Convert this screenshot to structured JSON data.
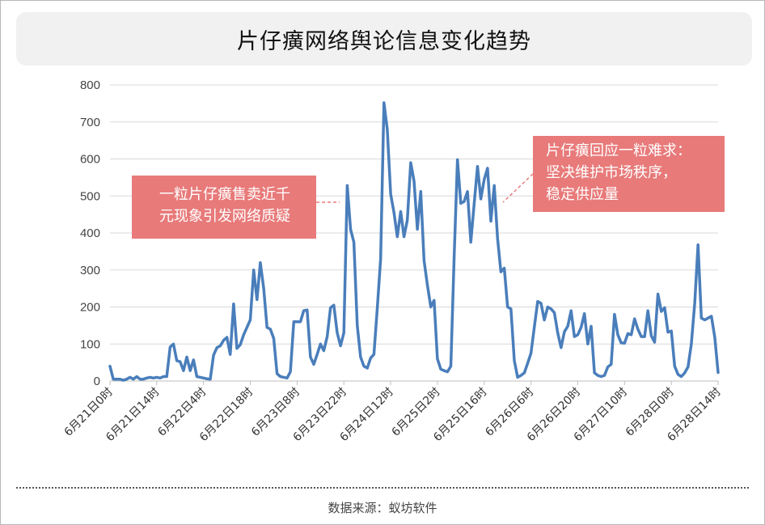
{
  "page": {
    "title": "片仔癀网络舆论信息变化趋势",
    "source": "数据来源：蚁坊软件"
  },
  "callouts": {
    "left": {
      "line1": "一粒片仔癀售卖近千",
      "line2": "元现象引发网络质疑"
    },
    "right": {
      "line1": "片仔癀回应一粒难求：",
      "line2": "坚决维护市场秩序，",
      "line3": "稳定供应量"
    }
  },
  "colors": {
    "line": "#4a7ebb",
    "callout": "#e87a7a",
    "grid": "#d9d9d9"
  },
  "chart_data": {
    "type": "line",
    "title": "片仔癀网络舆论信息变化趋势",
    "ylim": [
      0,
      800
    ],
    "yticks": [
      0,
      100,
      200,
      300,
      400,
      500,
      600,
      700,
      800
    ],
    "grid": true,
    "x_tick_labels": [
      "6月21日0时",
      "6月21日14时",
      "6月22日4时",
      "6月22日18时",
      "6月23日8时",
      "6月23日22时",
      "6月24日12时",
      "6月25日2时",
      "6月25日16时",
      "6月26日6时",
      "6月26日20时",
      "6月27日10时",
      "6月28日0时",
      "6月28日14时"
    ],
    "x_tick_index_step": 14,
    "series": [
      {
        "values": [
          40,
          5,
          5,
          5,
          2,
          5,
          10,
          5,
          12,
          5,
          5,
          8,
          10,
          8,
          10,
          8,
          12,
          12,
          92,
          100,
          55,
          52,
          28,
          65,
          28,
          57,
          12,
          10,
          8,
          6,
          5,
          70,
          90,
          95,
          110,
          118,
          72,
          208,
          88,
          98,
          125,
          145,
          165,
          300,
          220,
          320,
          250,
          145,
          140,
          115,
          20,
          12,
          10,
          8,
          25,
          160,
          160,
          160,
          190,
          192,
          65,
          45,
          72,
          100,
          82,
          120,
          198,
          205,
          130,
          95,
          130,
          528,
          410,
          375,
          150,
          65,
          40,
          35,
          62,
          72,
          195,
          330,
          752,
          680,
          505,
          455,
          390,
          458,
          390,
          435,
          590,
          540,
          410,
          512,
          325,
          260,
          200,
          218,
          60,
          32,
          28,
          25,
          40,
          335,
          598,
          480,
          485,
          512,
          375,
          480,
          580,
          492,
          545,
          575,
          432,
          528,
          385,
          295,
          305,
          200,
          195,
          55,
          10,
          15,
          22,
          48,
          75,
          145,
          215,
          210,
          165,
          200,
          195,
          185,
          130,
          90,
          133,
          148,
          190,
          120,
          125,
          145,
          182,
          100,
          148,
          22,
          15,
          12,
          15,
          38,
          45,
          180,
          125,
          103,
          102,
          128,
          125,
          168,
          140,
          120,
          120,
          190,
          122,
          105,
          235,
          188,
          198,
          132,
          135,
          40,
          18,
          12,
          22,
          38,
          100,
          210,
          368,
          170,
          165,
          170,
          175,
          118,
          23
        ]
      }
    ]
  }
}
